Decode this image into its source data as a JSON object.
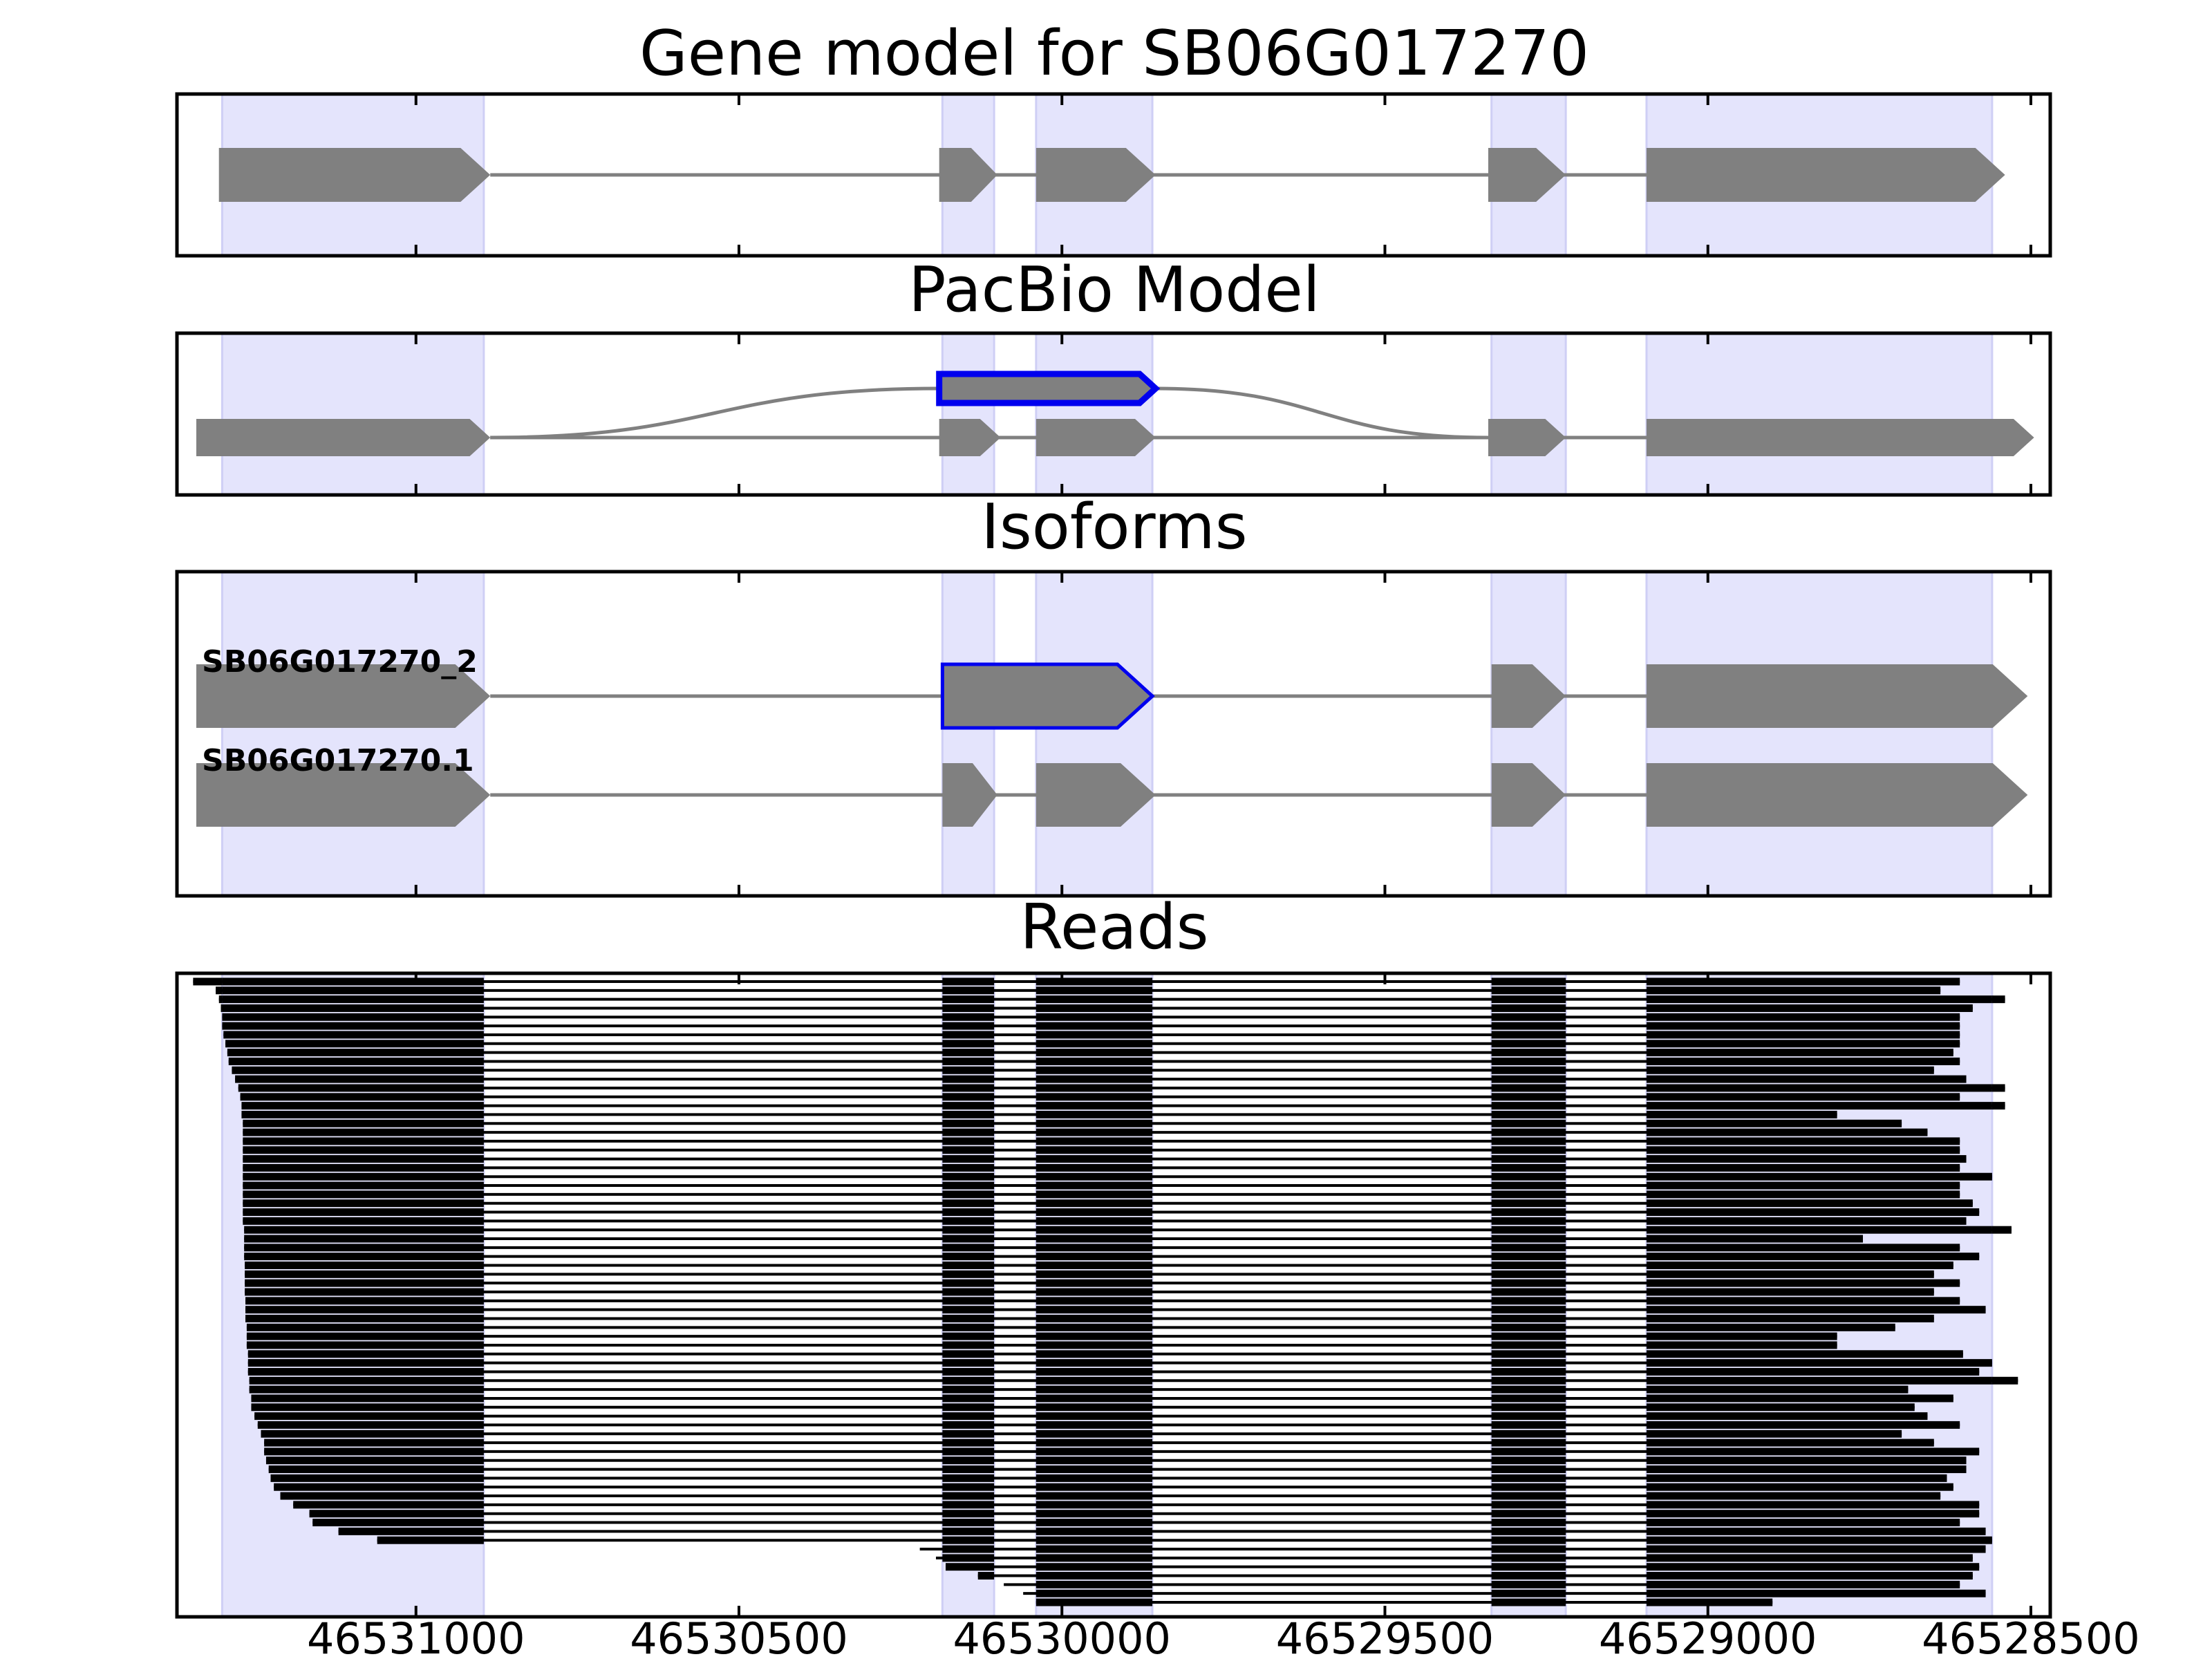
{
  "chart_data": {
    "type": "gene-model",
    "x_axis": {
      "reversed": true,
      "range": [
        46531370,
        46528470
      ],
      "ticks": [
        46531000,
        46530500,
        46530000,
        46529500,
        46529000,
        46528500
      ],
      "tick_labels": [
        "46531000",
        "46530500",
        "46530000",
        "46529500",
        "46529000",
        "46528500"
      ]
    },
    "shaded_exons": [
      [
        46531300,
        46530895
      ],
      [
        46530185,
        46530105
      ],
      [
        46530040,
        46529860
      ],
      [
        46529335,
        46529220
      ],
      [
        46529095,
        46528560
      ]
    ],
    "colors": {
      "shade": "#e4e4fc",
      "exon": "#808080",
      "intron": "#808080",
      "highlight": "#0000ee",
      "reads": "#000000"
    },
    "panels": [
      {
        "title": "Gene model for SB06G017270",
        "tracks": [
          {
            "exons": [
              [
                46531305,
                46530885
              ],
              [
                46530190,
                46530100
              ],
              [
                46530040,
                46529855
              ],
              [
                46529340,
                46529220
              ],
              [
                46529095,
                46528540
              ]
            ]
          }
        ]
      },
      {
        "title": "PacBio Model",
        "tracks": [
          {
            "exons": [
              [
                46531340,
                46530885
              ],
              [
                46530190,
                46530095
              ],
              [
                46530040,
                46529855
              ],
              [
                46529340,
                46529220
              ],
              [
                46529095,
                46528495
              ]
            ]
          }
        ],
        "alt_exon": [
          46530190,
          46529855
        ]
      },
      {
        "title": "Isoforms",
        "tracks": [
          {
            "label": "SB06G017270_2",
            "exons": [
              [
                46531340,
                46530885
              ],
              [
                46530185,
                46529860
              ],
              [
                46529335,
                46529220
              ],
              [
                46529095,
                46528505
              ]
            ],
            "highlight_index": 1
          },
          {
            "label": "SB06G017270.1",
            "exons": [
              [
                46531340,
                46530885
              ],
              [
                46530185,
                46530100
              ],
              [
                46530040,
                46529855
              ],
              [
                46529335,
                46529220
              ],
              [
                46529095,
                46528505
              ]
            ]
          }
        ]
      },
      {
        "title": "Reads",
        "read_starts": [
          46531345,
          46531310,
          46531305,
          46531302,
          46531300,
          46531300,
          46531298,
          46531295,
          46531292,
          46531290,
          46531285,
          46531280,
          46531275,
          46531272,
          46531270,
          46531270,
          46531268,
          46531268,
          46531268,
          46531268,
          46531268,
          46531268,
          46531268,
          46531268,
          46531268,
          46531268,
          46531268,
          46531268,
          46531266,
          46531266,
          46531266,
          46531266,
          46531265,
          46531265,
          46531265,
          46531265,
          46531264,
          46531264,
          46531264,
          46531262,
          46531262,
          46531262,
          46531260,
          46531260,
          46531260,
          46531258,
          46531258,
          46531255,
          46531255,
          46531250,
          46531245,
          46531240,
          46531235,
          46531235,
          46531232,
          46531228,
          46531225,
          46531220,
          46531210,
          46531190,
          46531165,
          46531160,
          46531120,
          46531060,
          46530220,
          46530195,
          46530180,
          46530130,
          46530090,
          46530060,
          46530040
        ],
        "read_ends": [
          46528610,
          46528640,
          46528540,
          46528590,
          46528610,
          46528610,
          46528610,
          46528610,
          46528620,
          46528610,
          46528650,
          46528600,
          46528540,
          46528610,
          46528540,
          46528800,
          46528700,
          46528660,
          46528610,
          46528610,
          46528600,
          46528610,
          46528560,
          46528610,
          46528610,
          46528590,
          46528580,
          46528600,
          46528530,
          46528760,
          46528610,
          46528580,
          46528620,
          46528650,
          46528610,
          46528650,
          46528610,
          46528570,
          46528650,
          46528710,
          46528800,
          46528800,
          46528605,
          46528560,
          46528580,
          46528520,
          46528690,
          46528620,
          46528680,
          46528660,
          46528610,
          46528700,
          46528650,
          46528580,
          46528600,
          46528600,
          46528630,
          46528620,
          46528640,
          46528580,
          46528580,
          46528610,
          46528570,
          46528560,
          46528570,
          46528590,
          46528580,
          46528590,
          46528610,
          46528570,
          46528900
        ]
      }
    ]
  }
}
